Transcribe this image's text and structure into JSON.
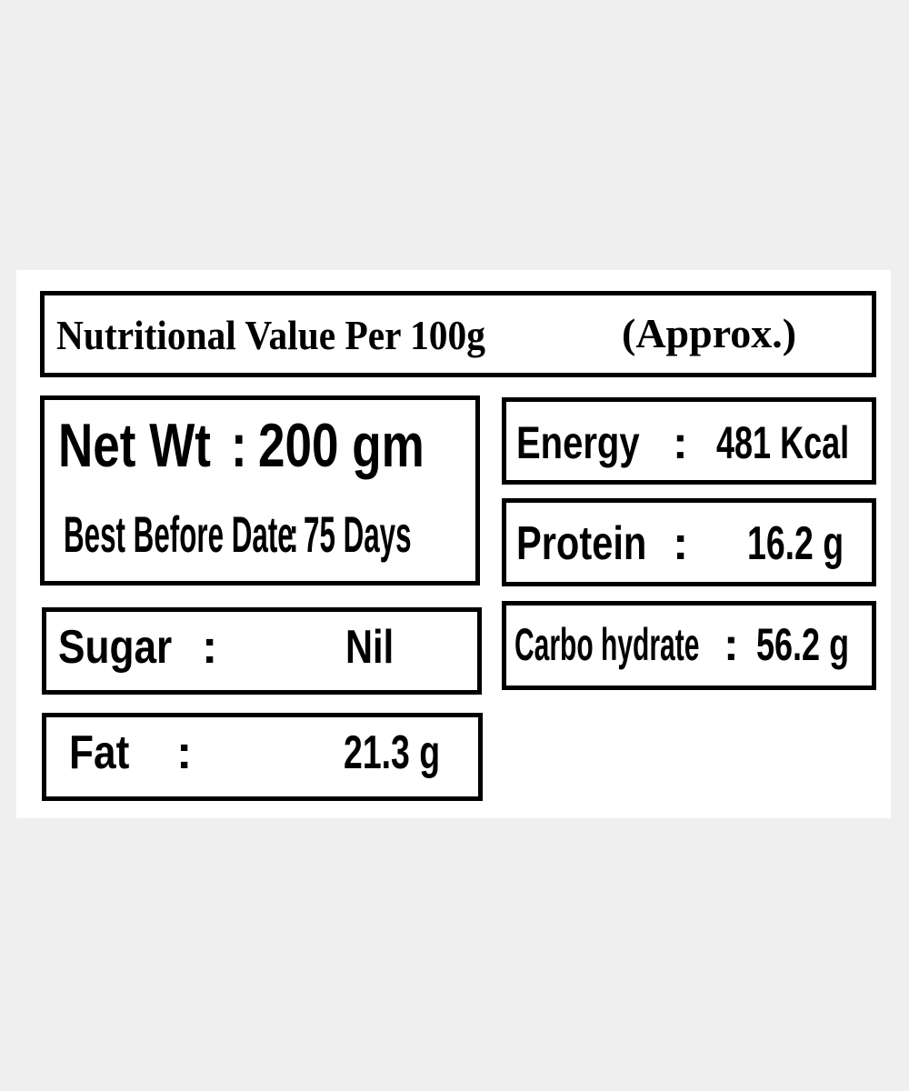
{
  "header": {
    "title": "Nutritional Value Per 100g",
    "note": "(Approx.)"
  },
  "net_weight": {
    "label": "Net Wt",
    "separator": ":",
    "value": "200 gm"
  },
  "best_before": {
    "label": "Best Before Date",
    "separator": ":",
    "value": "75 Days"
  },
  "nutrients": [
    {
      "label": "Energy",
      "separator": ":",
      "value": "481 Kcal"
    },
    {
      "label": "Protein",
      "separator": ":",
      "value": "16.2 g"
    },
    {
      "label": "Carbo hydrate",
      "separator": ":",
      "value": "56.2 g"
    },
    {
      "label": "Sugar",
      "separator": ":",
      "value": "Nil"
    },
    {
      "label": "Fat",
      "separator": ":",
      "value": "21.3 g"
    }
  ]
}
